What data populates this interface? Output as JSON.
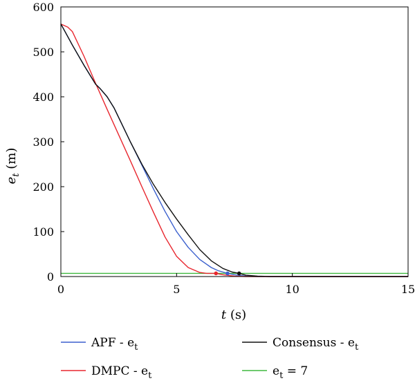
{
  "chart_data": {
    "type": "line",
    "xlabel_var": "t",
    "xlabel_unit": "(s)",
    "ylabel_var": "e",
    "ylabel_sub": "t",
    "ylabel_unit": "(m)",
    "xlim": [
      0,
      15
    ],
    "ylim": [
      0,
      600
    ],
    "xticks": [
      0,
      5,
      10,
      15
    ],
    "yticks": [
      0,
      100,
      200,
      300,
      400,
      500,
      600
    ],
    "grid": false,
    "legend_position": "bottom",
    "series": [
      {
        "name": "APF - e",
        "name_sub": "t",
        "color": "#3a5fcd",
        "x": [
          0,
          0.5,
          1,
          1.5,
          1.7,
          2,
          2.3,
          2.6,
          3,
          3.5,
          4,
          4.5,
          5,
          5.5,
          6,
          6.5,
          6.8,
          7,
          7.2,
          7.5,
          7.8,
          8,
          8.5,
          9,
          10,
          15
        ],
        "y": [
          562,
          515,
          470,
          428,
          418,
          400,
          375,
          343,
          300,
          248,
          195,
          145,
          100,
          65,
          38,
          20,
          13,
          10,
          7,
          4,
          2,
          1,
          0,
          0,
          0,
          0
        ],
        "end_marker": [
          7.2,
          7
        ]
      },
      {
        "name": "DMPC - e",
        "name_sub": "t",
        "color": "#e8262e",
        "x": [
          0,
          0.3,
          0.5,
          1,
          1.5,
          2,
          2.5,
          3,
          3.5,
          4,
          4.5,
          5,
          5.5,
          6,
          6.3,
          6.7,
          7,
          7.5,
          8,
          9,
          15
        ],
        "y": [
          562,
          555,
          545,
          490,
          430,
          372,
          315,
          258,
          200,
          143,
          88,
          45,
          20,
          9,
          7,
          7,
          4,
          1,
          0,
          0,
          0
        ],
        "end_marker": [
          6.7,
          7
        ]
      },
      {
        "name": "Consensus - e",
        "name_sub": "t",
        "color": "#111111",
        "x": [
          0,
          0.5,
          1,
          1.5,
          1.7,
          2,
          2.3,
          2.6,
          3,
          3.5,
          4,
          4.5,
          5,
          5.5,
          6,
          6.5,
          7,
          7.4,
          7.7,
          8,
          8.5,
          9,
          10,
          15
        ],
        "y": [
          562,
          515,
          470,
          428,
          418,
          400,
          375,
          343,
          300,
          250,
          205,
          165,
          128,
          93,
          60,
          35,
          18,
          10,
          7,
          3,
          1,
          0,
          0,
          0
        ],
        "end_marker": [
          7.7,
          7
        ]
      },
      {
        "name": "e",
        "name_sub": "t",
        "name_suffix": " = 7",
        "color": "#3fb83f",
        "x": [
          0,
          15
        ],
        "y": [
          7,
          7
        ]
      }
    ]
  }
}
